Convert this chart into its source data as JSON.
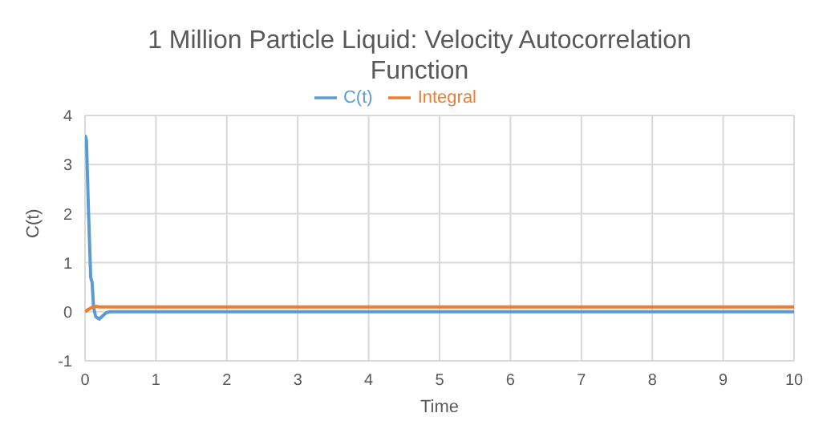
{
  "chart_data": {
    "type": "line",
    "title": "1 Million Particle Liquid: Velocity Autocorrelation Function",
    "xlabel": "Time",
    "ylabel": "C(t)",
    "series": [
      {
        "name": "C(t)",
        "color": "#5b9bd5",
        "x": [
          0,
          0.02,
          0.05,
          0.08,
          0.1,
          0.12,
          0.15,
          0.2,
          0.25,
          0.3,
          0.35,
          0.5,
          1,
          2,
          4,
          6,
          8,
          10
        ],
        "values": [
          3.6,
          3.5,
          2.0,
          0.7,
          0.6,
          0.1,
          -0.1,
          -0.15,
          -0.08,
          -0.02,
          0,
          0,
          0,
          0,
          0,
          0,
          0,
          0
        ]
      },
      {
        "name": "Integral",
        "color": "#ed7d31",
        "x": [
          0,
          0.05,
          0.1,
          0.15,
          0.2,
          0.3,
          1,
          2,
          4,
          6,
          8,
          10
        ],
        "values": [
          0,
          0.05,
          0.09,
          0.11,
          0.1,
          0.1,
          0.1,
          0.1,
          0.1,
          0.1,
          0.1,
          0.1
        ]
      }
    ],
    "xlim": [
      0,
      10
    ],
    "xticks": [
      0,
      1,
      2,
      3,
      4,
      5,
      6,
      7,
      8,
      9,
      10
    ],
    "ylim": [
      -1,
      4
    ],
    "yticks": [
      -1,
      0,
      1,
      2,
      3,
      4
    ],
    "grid": true,
    "legend": "top",
    "marker": "none",
    "line_style": "solid"
  }
}
